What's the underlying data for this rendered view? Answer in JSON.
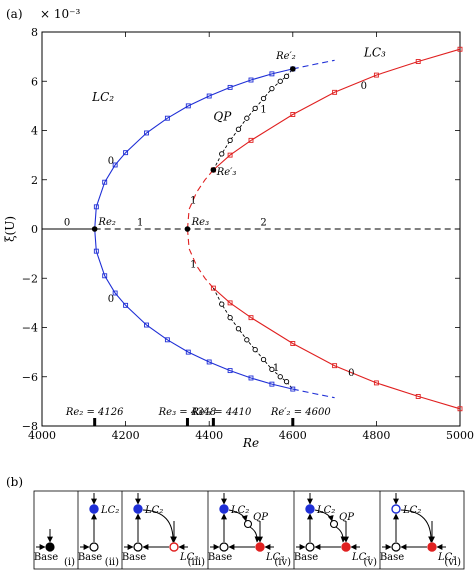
{
  "panel_a": {
    "label": "(a)",
    "y_scale_label": "× 10⁻³",
    "xlabel": "Re",
    "ylabel": "ξ(U)",
    "x_ticks": [
      "4000",
      "4200",
      "4400",
      "4600",
      "4800",
      "5000"
    ],
    "y_ticks": [
      "−8",
      "−6",
      "−4",
      "−2",
      "0",
      "2",
      "4",
      "6",
      "8"
    ],
    "series_labels": {
      "lc2": "LC₂",
      "lc3": "LC₃",
      "qp": "QP"
    },
    "point_labels": {
      "re2": "Re₂",
      "re3": "Re₃",
      "re2p": "Re′₂",
      "re3p": "Re′₃"
    },
    "stability_labels": [
      {
        "text": "0",
        "x": 4060,
        "y": 0.3
      },
      {
        "text": "1",
        "x": 4235,
        "y": 0.3
      },
      {
        "text": "2",
        "x": 4530,
        "y": 0.3
      },
      {
        "text": "0",
        "x": 4165,
        "y": 2.8
      },
      {
        "text": "0",
        "x": 4165,
        "y": -2.8
      },
      {
        "text": "1",
        "x": 4362,
        "y": 1.2
      },
      {
        "text": "1",
        "x": 4362,
        "y": -1.4
      },
      {
        "text": "0",
        "x": 4770,
        "y": 5.85
      },
      {
        "text": "0",
        "x": 4740,
        "y": -5.8
      },
      {
        "text": "1",
        "x": 4530,
        "y": 4.9
      },
      {
        "text": "1",
        "x": 4560,
        "y": -5.6
      }
    ],
    "critical_values": [
      {
        "label": "Re₂ = 4126",
        "re": 4126
      },
      {
        "label": "Re₃ = 4348",
        "re": 4348
      },
      {
        "label": "Re′₃ = 4410",
        "re": 4410
      },
      {
        "label": "Re′₂ = 4600",
        "re": 4600
      }
    ]
  },
  "chart_data": {
    "type": "line",
    "title": "",
    "xlabel": "Re",
    "ylabel": "ξ(U)",
    "xlim": [
      4000,
      5000
    ],
    "ylim": [
      -8,
      8
    ],
    "y_multiplier": "× 10⁻³",
    "grid": false,
    "colors": {
      "lc2": "#1f2fd6",
      "lc3": "#e02020",
      "base": "#000000",
      "qp": "#000000"
    },
    "critical_points": {
      "Re2": 4126,
      "Re3": 4348,
      "Re3_prime": 4410,
      "Re2_prime": 4600
    },
    "series": [
      {
        "name": "LC₂",
        "branch": "upper",
        "stable_until": 4600,
        "x": [
          4126,
          4130,
          4150,
          4175,
          4200,
          4250,
          4300,
          4350,
          4400,
          4450,
          4500,
          4550,
          4600,
          4650,
          4700
        ],
        "y": [
          0,
          0.9,
          1.9,
          2.6,
          3.1,
          3.9,
          4.5,
          5.0,
          5.4,
          5.75,
          6.05,
          6.3,
          6.5,
          6.68,
          6.85
        ]
      },
      {
        "name": "LC₂",
        "branch": "lower",
        "stable_until": 4600,
        "x": [
          4126,
          4130,
          4150,
          4175,
          4200,
          4250,
          4300,
          4350,
          4400,
          4450,
          4500,
          4550,
          4600,
          4650,
          4700
        ],
        "y": [
          0,
          -0.9,
          -1.9,
          -2.6,
          -3.1,
          -3.9,
          -4.5,
          -5.0,
          -5.4,
          -5.75,
          -6.05,
          -6.3,
          -6.5,
          -6.68,
          -6.85
        ]
      },
      {
        "name": "LC₃",
        "branch": "upper",
        "stable_from": 4410,
        "x": [
          4348,
          4352,
          4370,
          4390,
          4410,
          4450,
          4500,
          4600,
          4700,
          4800,
          4900,
          5000
        ],
        "y": [
          0,
          0.8,
          1.5,
          2.0,
          2.4,
          3.0,
          3.6,
          4.65,
          5.55,
          6.25,
          6.8,
          7.3
        ]
      },
      {
        "name": "LC₃",
        "branch": "lower",
        "stable_from": 4410,
        "x": [
          4348,
          4352,
          4370,
          4390,
          4410,
          4450,
          4500,
          4600,
          4700,
          4800,
          4900,
          5000
        ],
        "y": [
          0,
          -0.8,
          -1.5,
          -2.0,
          -2.4,
          -3.0,
          -3.6,
          -4.65,
          -5.55,
          -6.25,
          -6.8,
          -7.3
        ]
      },
      {
        "name": "QP",
        "branch": "upper",
        "x": [
          4410,
          4430,
          4450,
          4470,
          4490,
          4510,
          4530,
          4550,
          4570,
          4585,
          4600
        ],
        "y": [
          2.4,
          3.05,
          3.6,
          4.05,
          4.5,
          4.9,
          5.3,
          5.7,
          6.0,
          6.2,
          6.5
        ]
      },
      {
        "name": "QP",
        "branch": "lower",
        "x": [
          4410,
          4430,
          4450,
          4470,
          4490,
          4510,
          4530,
          4550,
          4570,
          4585,
          4600
        ],
        "y": [
          -2.4,
          -3.05,
          -3.6,
          -4.05,
          -4.5,
          -4.9,
          -5.3,
          -5.7,
          -6.0,
          -6.2,
          -6.5
        ]
      },
      {
        "name": "Base",
        "branch": "axis",
        "x": [
          4000,
          4126,
          4348,
          5000
        ],
        "y": [
          0,
          0,
          0,
          0
        ]
      }
    ]
  },
  "panel_b": {
    "label": "(b)",
    "cells": [
      {
        "roman": "(i)",
        "base": "Base",
        "base_style": "filled",
        "lc2": null,
        "lc3": null,
        "qp": null
      },
      {
        "roman": "(ii)",
        "base": "Base",
        "base_style": "open",
        "lc2": "LC₂",
        "lc2_style": "filled",
        "lc3": null,
        "qp": null
      },
      {
        "roman": "(iii)",
        "base": "Base",
        "base_style": "open",
        "lc2": "LC₂",
        "lc2_style": "filled",
        "lc3": "LC₃",
        "lc3_style": "open",
        "qp": null
      },
      {
        "roman": "(iv)",
        "base": "Base",
        "base_style": "open",
        "lc2": "LC₂",
        "lc2_style": "filled",
        "lc3": "LC₃",
        "lc3_style": "filled",
        "qp": "QP"
      },
      {
        "roman": "(v)",
        "base": "Base",
        "base_style": "open",
        "lc2": "LC₂",
        "lc2_style": "filled",
        "lc3": "LC₃",
        "lc3_style": "filled",
        "qp": "QP"
      },
      {
        "roman": "(vi)",
        "base": "Base",
        "base_style": "open",
        "lc2": "LC₂",
        "lc2_style": "open",
        "lc3": "LC₃",
        "lc3_style": "filled",
        "qp": null
      }
    ]
  }
}
